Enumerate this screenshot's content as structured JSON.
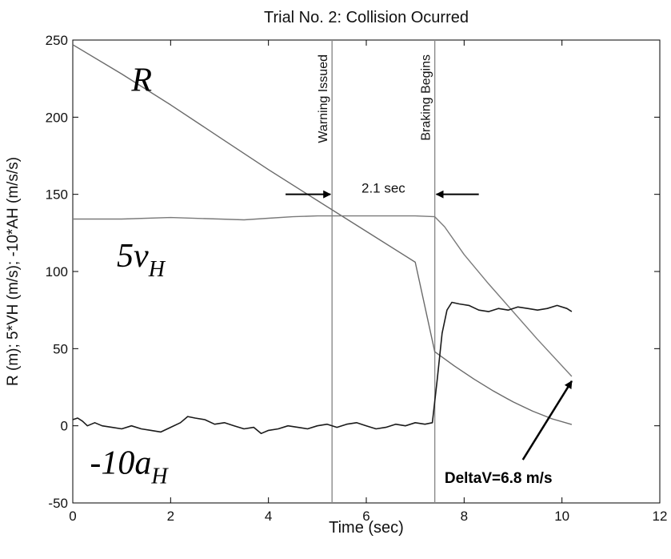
{
  "chart_data": {
    "type": "line",
    "title": "Trial No. 2:  Collision Ocurred",
    "xlabel": "Time (sec)",
    "ylabel": "R (m); 5*VH (m/s); -10*AH (m/s/s)",
    "xlim": [
      0,
      12
    ],
    "ylim": [
      -50,
      250
    ],
    "xticks": [
      0,
      2,
      4,
      6,
      8,
      10,
      12
    ],
    "yticks": [
      -50,
      0,
      50,
      100,
      150,
      200,
      250
    ],
    "grid": false,
    "series": [
      {
        "name": "R",
        "color": "#6a6a6a",
        "x": [
          0,
          1,
          2,
          3,
          4,
          5,
          6,
          7,
          7.4,
          7.8,
          8.2,
          8.6,
          9,
          9.4,
          9.8,
          10.2
        ],
        "y": [
          247,
          228,
          208,
          187,
          166,
          146,
          126,
          106,
          48,
          38.8,
          30.3,
          22.5,
          15.5,
          9.5,
          4.5,
          0.8
        ]
      },
      {
        "name": "5v_H",
        "color": "#7a7a7a",
        "x": [
          0,
          1,
          2,
          3,
          3.5,
          4,
          4.5,
          5,
          5.5,
          6,
          6.5,
          7,
          7.4,
          7.6,
          8,
          8.5,
          9,
          9.5,
          10.2
        ],
        "y": [
          134,
          134,
          135,
          134,
          133.5,
          134.5,
          135.5,
          136,
          136,
          136,
          136,
          136,
          135.5,
          129,
          111,
          92,
          74,
          56,
          32
        ]
      },
      {
        "name": "-10a_H",
        "color": "#1a1a1a",
        "x": [
          0,
          0.1,
          0.2,
          0.3,
          0.45,
          0.6,
          0.8,
          1,
          1.2,
          1.4,
          1.6,
          1.8,
          2,
          2.2,
          2.35,
          2.5,
          2.7,
          2.9,
          3.1,
          3.3,
          3.5,
          3.7,
          3.85,
          4,
          4.2,
          4.4,
          4.6,
          4.8,
          5,
          5.2,
          5.4,
          5.6,
          5.8,
          6,
          6.2,
          6.4,
          6.6,
          6.8,
          7,
          7.2,
          7.35,
          7.45,
          7.55,
          7.65,
          7.75,
          7.9,
          8.1,
          8.3,
          8.5,
          8.7,
          8.9,
          9.1,
          9.3,
          9.5,
          9.7,
          9.9,
          10.1,
          10.2
        ],
        "y": [
          4,
          5,
          3,
          0,
          2,
          0,
          -1,
          -2,
          0,
          -2,
          -3,
          -4,
          -1,
          2,
          6,
          5,
          4,
          1,
          2,
          0,
          -2,
          -1,
          -5,
          -3,
          -2,
          0,
          -1,
          -2,
          0,
          1,
          -1,
          1,
          2,
          0,
          -2,
          -1,
          1,
          0,
          2,
          1,
          2,
          30,
          60,
          75,
          80,
          79,
          78,
          75,
          74,
          76,
          75,
          77,
          76,
          75,
          76,
          78,
          76,
          74
        ]
      }
    ],
    "vlines": [
      {
        "x": 5.3,
        "label": "Warning Issued"
      },
      {
        "x": 7.4,
        "label": "Braking Begins"
      }
    ],
    "annotations": {
      "interval": {
        "label": "2.1 sec",
        "y": 150,
        "x_left_from": 4.35,
        "x_right_from": 8.3
      },
      "delta_v": {
        "label": "DeltaV=6.8 m/s",
        "text_x": 7.6,
        "text_y": -37,
        "arrow_tail": [
          9.2,
          -22
        ],
        "arrow_head": [
          10.2,
          29
        ]
      },
      "curve_labels": {
        "R": {
          "base": "R",
          "sub": "",
          "x": 1.2,
          "y": 217
        },
        "5v_H": {
          "base": "5v",
          "sub": "H",
          "x": 0.9,
          "y": 103
        },
        "-10a_H": {
          "base": "-10a",
          "sub": "H",
          "x": 0.35,
          "y": -31
        }
      }
    }
  }
}
